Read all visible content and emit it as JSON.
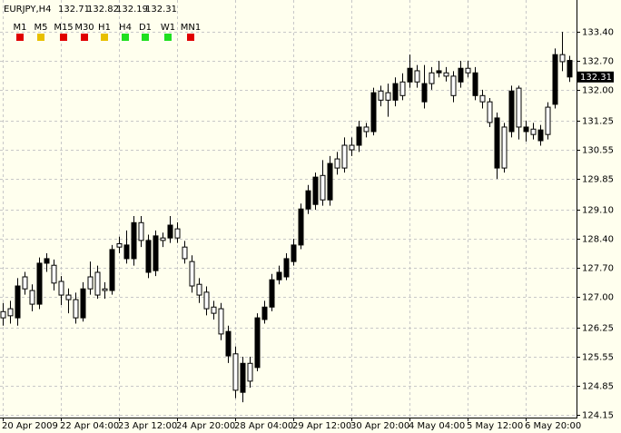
{
  "chart_data": {
    "type": "candlestick",
    "title": "EURJPY,H4",
    "categories": [
      "20 Apr 2009",
      null,
      null,
      null,
      null,
      null,
      null,
      null,
      "22 Apr 04:00",
      null,
      null,
      null,
      null,
      null,
      null,
      null,
      "23 Apr 12:00",
      null,
      null,
      null,
      null,
      null,
      null,
      null,
      "24 Apr 20:00",
      null,
      null,
      null,
      null,
      null,
      null,
      null,
      "28 Apr 04:00",
      null,
      null,
      null,
      null,
      null,
      null,
      null,
      "29 Apr 12:00",
      null,
      null,
      null,
      null,
      null,
      null,
      null,
      "30 Apr 20:00",
      null,
      null,
      null,
      null,
      null,
      null,
      null,
      "4 May 04:00",
      null,
      null,
      null,
      null,
      null,
      null,
      null,
      "5 May 12:00",
      null,
      null,
      null,
      null,
      null,
      null,
      null,
      "6 May 20:00",
      null,
      null,
      null,
      null,
      null,
      null
    ],
    "open": [
      126.49,
      126.54,
      127.26,
      127.19,
      126.82,
      127.81,
      127.92,
      127.33,
      127.04,
      126.93,
      126.49,
      127.19,
      127.19,
      127.04,
      127.15,
      128.14,
      128.2,
      128.25,
      128.79,
      128.36,
      128.36,
      128.47,
      128.36,
      128.73,
      128.42,
      127.92,
      127.26,
      127.04,
      126.71,
      126.6,
      126.1,
      126.16,
      124.74,
      125.39,
      124.96,
      126.49,
      126.75,
      127.41,
      127.59,
      127.92,
      128.25,
      129.12,
      129.56,
      129.89,
      129.34,
      130.22,
      130.11,
      130.11,
      130.55,
      131.1,
      130.99,
      131.93,
      131.75,
      131.75,
      132.15,
      131.86,
      132.52,
      132.19,
      132.15,
      132.15,
      132.46,
      132.33,
      131.86,
      132.52,
      132.41,
      132.41,
      131.71,
      131.21,
      131.32,
      130.11,
      131.97,
      131.1,
      131.1,
      130.92,
      131.03,
      130.92,
      132.85,
      132.68,
      132.71
    ],
    "high": [
      126.85,
      126.9,
      127.45,
      127.6,
      127.3,
      127.95,
      128.05,
      127.9,
      127.5,
      127.2,
      127.1,
      127.35,
      127.85,
      127.75,
      127.35,
      128.25,
      128.45,
      128.6,
      128.95,
      128.95,
      128.5,
      128.6,
      128.55,
      128.95,
      128.8,
      128.35,
      128.0,
      127.45,
      127.25,
      126.9,
      126.85,
      126.3,
      125.8,
      125.55,
      125.55,
      126.6,
      126.9,
      127.55,
      127.75,
      128.05,
      128.4,
      129.25,
      129.7,
      130.0,
      130.3,
      130.4,
      130.5,
      130.85,
      130.85,
      131.25,
      131.2,
      132.05,
      132.1,
      132.15,
      132.3,
      132.4,
      132.85,
      132.6,
      132.6,
      132.55,
      132.7,
      132.55,
      132.45,
      132.7,
      132.7,
      132.55,
      132.0,
      131.8,
      131.45,
      131.2,
      132.1,
      132.1,
      131.25,
      131.2,
      131.15,
      131.7,
      133.0,
      133.4,
      132.82
    ],
    "low": [
      126.3,
      126.35,
      126.3,
      127.05,
      126.65,
      126.7,
      127.6,
      127.15,
      126.8,
      126.6,
      126.35,
      126.4,
      127.05,
      126.95,
      126.95,
      127.05,
      128.05,
      127.8,
      127.75,
      128.2,
      127.45,
      127.5,
      128.2,
      128.3,
      128.3,
      127.8,
      127.1,
      126.85,
      126.55,
      126.45,
      125.95,
      125.4,
      124.55,
      124.45,
      124.8,
      125.2,
      126.35,
      126.65,
      127.3,
      127.4,
      127.75,
      128.15,
      129.0,
      129.1,
      129.2,
      129.2,
      129.95,
      130.0,
      130.4,
      130.5,
      130.85,
      130.9,
      131.6,
      131.35,
      131.6,
      131.75,
      132.05,
      132.05,
      131.55,
      132.0,
      132.3,
      132.2,
      131.7,
      132.05,
      132.3,
      131.75,
      131.55,
      131.1,
      129.85,
      130.0,
      130.85,
      130.8,
      130.75,
      130.8,
      130.65,
      130.8,
      131.55,
      132.45,
      132.19
    ],
    "close": [
      126.64,
      126.71,
      126.49,
      127.48,
      127.15,
      126.82,
      127.81,
      127.76,
      127.37,
      127.04,
      126.93,
      126.49,
      127.48,
      127.59,
      127.19,
      127.15,
      128.28,
      127.92,
      127.92,
      128.79,
      127.59,
      127.63,
      128.42,
      128.42,
      128.64,
      128.2,
      127.85,
      127.3,
      127.11,
      126.75,
      126.71,
      125.57,
      125.62,
      124.69,
      125.39,
      125.29,
      126.45,
      126.75,
      127.41,
      127.48,
      127.85,
      128.25,
      129.12,
      129.23,
      129.93,
      129.34,
      130.33,
      130.66,
      130.66,
      130.66,
      131.1,
      130.99,
      131.97,
      131.93,
      131.75,
      132.19,
      132.19,
      132.46,
      131.71,
      132.41,
      132.41,
      132.41,
      132.33,
      132.19,
      132.52,
      131.86,
      131.86,
      131.71,
      130.11,
      131.1,
      130.99,
      132.04,
      130.99,
      131.05,
      130.77,
      131.58,
      131.65,
      132.85,
      132.31
    ],
    "up_color": "#ffffff",
    "down_color": "#000000",
    "line_color": "#000000",
    "ylim": [
      124.08,
      134.17
    ],
    "yticks": [
      {
        "value": 133.4,
        "label": "133.40"
      },
      {
        "value": 132.7,
        "label": "132.70"
      },
      {
        "value": 132,
        "label": "132.00"
      },
      131.25,
      130.55,
      129.85,
      {
        "value": 129.1,
        "label": "129.10"
      },
      {
        "value": 128.4,
        "label": "128.40"
      },
      {
        "value": 127.7,
        "label": "127.70"
      },
      {
        "value": 127,
        "label": "127.00"
      },
      126.25,
      125.55,
      124.85,
      124.15
    ],
    "grid": true
  },
  "indicators": [
    {
      "label": "M1",
      "color": "#e00000"
    },
    {
      "label": "M5",
      "color": "#e8c000"
    },
    {
      "label": "M15",
      "color": "#e00000"
    },
    {
      "label": "M30",
      "color": "#e00000"
    },
    {
      "label": "H1",
      "color": "#e8c000"
    },
    {
      "label": "H4",
      "color": "#20e020"
    },
    {
      "label": "D1",
      "color": "#20e020"
    },
    {
      "label": "W1",
      "color": "#20e020"
    },
    {
      "label": "MN1",
      "color": "#e00000"
    }
  ]
}
